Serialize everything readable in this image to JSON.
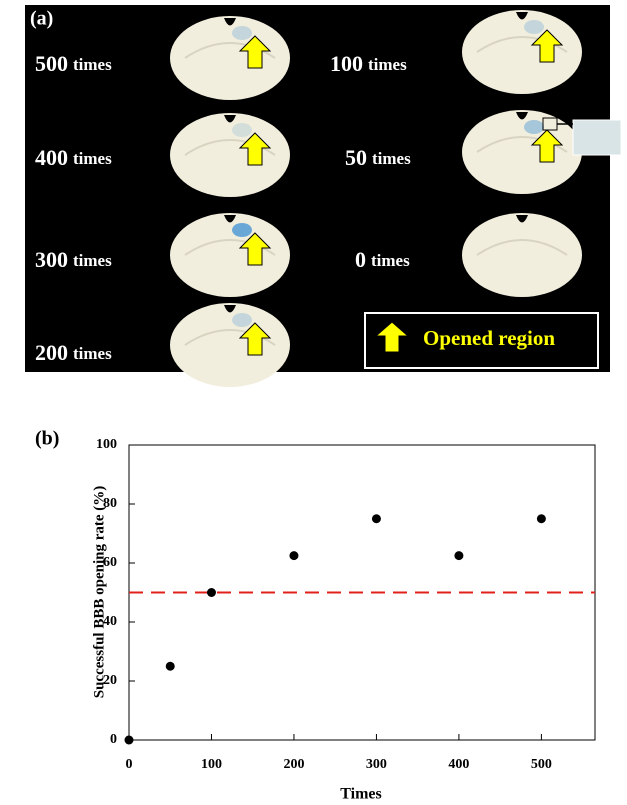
{
  "panel_a": {
    "panel_label": "(a)",
    "labels": [
      {
        "count": "500",
        "unit": "times"
      },
      {
        "count": "400",
        "unit": "times"
      },
      {
        "count": "300",
        "unit": "times"
      },
      {
        "count": "200",
        "unit": "times"
      },
      {
        "count": "100",
        "unit": "times"
      },
      {
        "count": "50",
        "unit": "times"
      },
      {
        "count": "0",
        "unit": "times"
      }
    ],
    "legend": "Opened region"
  },
  "chart_data": {
    "type": "scatter",
    "panel_label": "(b)",
    "x_label": "Times",
    "y_label": "Successful BBB opening rate (%)",
    "x": [
      0,
      50,
      100,
      200,
      300,
      400,
      500
    ],
    "values": [
      0,
      25,
      50,
      62.5,
      75,
      62.5,
      75
    ],
    "color": "#000000",
    "reference_line": {
      "value": 50,
      "color": "#e0201b"
    },
    "xlim": [
      0,
      565
    ],
    "ylim": [
      0,
      100
    ],
    "xticks": [
      0,
      100,
      200,
      300,
      400,
      500
    ],
    "yticks": [
      0,
      20,
      40,
      60,
      80,
      100
    ]
  }
}
